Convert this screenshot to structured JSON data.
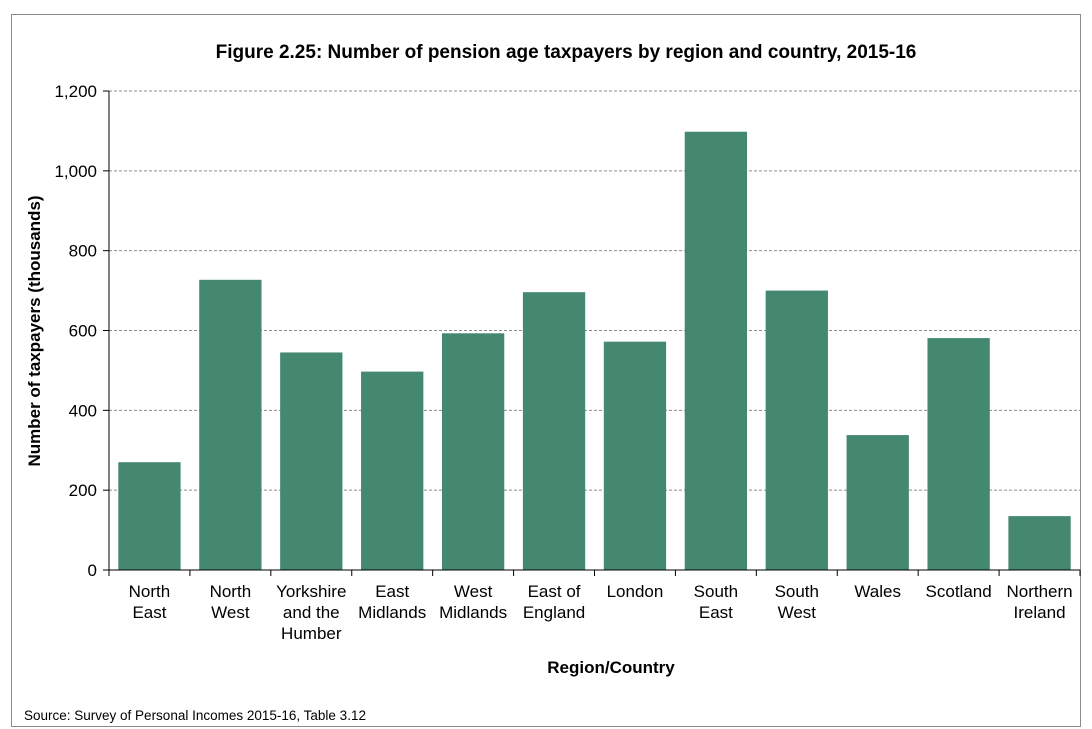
{
  "chart_data": {
    "type": "bar",
    "title": "Figure 2.25: Number of pension age taxpayers by region and country, 2015-16",
    "xlabel": "Region/Country",
    "ylabel": "Number of taxpayers (thousands)",
    "ylim": [
      0,
      1200
    ],
    "yticks": [
      0,
      200,
      400,
      600,
      800,
      1000,
      1200
    ],
    "ytick_labels": [
      "0",
      "200",
      "400",
      "600",
      "800",
      "1,000",
      "1,200"
    ],
    "grid": "horizontal dashed",
    "bar_color": "#458870",
    "categories": [
      [
        "North",
        "East"
      ],
      [
        "North",
        "West"
      ],
      [
        "Yorkshire",
        "and the",
        "Humber"
      ],
      [
        "East",
        "Midlands"
      ],
      [
        "West",
        "Midlands"
      ],
      [
        "East of",
        "England"
      ],
      [
        "London"
      ],
      [
        "South",
        "East"
      ],
      [
        "South",
        "West"
      ],
      [
        "Wales"
      ],
      [
        "Scotland"
      ],
      [
        "Northern",
        "Ireland"
      ]
    ],
    "values": [
      270,
      727,
      545,
      497,
      593,
      696,
      572,
      1098,
      700,
      338,
      581,
      135
    ]
  },
  "source": "Source: Survey of Personal Incomes 2015-16, Table 3.12"
}
